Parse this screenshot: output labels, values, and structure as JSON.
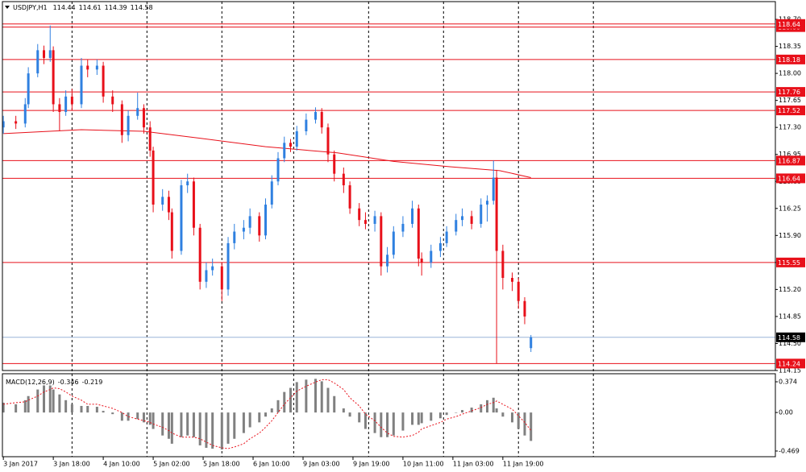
{
  "chart_data": [
    {
      "type": "candlestick",
      "title": "USDJPY,H1",
      "header_values": [
        114.44,
        114.61,
        114.39,
        114.58
      ],
      "x": [
        0,
        4,
        7,
        8,
        11,
        13,
        15,
        16,
        18,
        20,
        22,
        25,
        27,
        30,
        32,
        35,
        38,
        40,
        43,
        45,
        47,
        48,
        51,
        53,
        54,
        57,
        59,
        61,
        63,
        65,
        67,
        70,
        72,
        74,
        77,
        79,
        82,
        84,
        86,
        88,
        90,
        92,
        94,
        97,
        100,
        102,
        104,
        106,
        109,
        111,
        114,
        116,
        119,
        121,
        123,
        125,
        128,
        131,
        133,
        134,
        137,
        140,
        142,
        145,
        147,
        150,
        153,
        155,
        157,
        158,
        160,
        163,
        165,
        167,
        169
      ],
      "open": [
        117.3,
        117.38,
        117.35,
        117.6,
        118.0,
        118.3,
        118.2,
        118.3,
        117.6,
        117.5,
        117.7,
        117.6,
        118.1,
        118.05,
        118.1,
        117.7,
        117.6,
        117.2,
        117.45,
        117.55,
        117.3,
        117.0,
        116.3,
        116.4,
        116.2,
        115.7,
        116.55,
        116.6,
        116.0,
        115.3,
        115.45,
        115.5,
        115.2,
        115.8,
        115.95,
        116.0,
        116.15,
        115.9,
        116.3,
        116.6,
        116.9,
        117.1,
        117.05,
        117.25,
        117.4,
        117.5,
        117.3,
        116.95,
        116.7,
        116.55,
        116.25,
        116.1,
        116.05,
        116.15,
        115.5,
        115.65,
        115.95,
        116.05,
        116.25,
        115.6,
        115.55,
        115.7,
        115.8,
        115.95,
        116.1,
        116.15,
        116.05,
        116.3,
        116.35,
        116.65,
        115.7,
        115.35,
        115.3,
        115.05,
        114.44
      ],
      "high": [
        117.45,
        117.45,
        117.68,
        118.08,
        118.38,
        118.36,
        118.62,
        118.35,
        117.68,
        117.78,
        117.8,
        118.2,
        118.18,
        118.18,
        118.15,
        117.78,
        117.65,
        117.52,
        117.75,
        117.6,
        117.38,
        117.05,
        116.5,
        116.48,
        116.25,
        116.62,
        116.7,
        116.65,
        116.05,
        115.55,
        115.6,
        115.55,
        115.88,
        116.05,
        116.1,
        116.25,
        116.2,
        116.38,
        116.68,
        116.98,
        117.18,
        117.15,
        117.32,
        117.48,
        117.56,
        117.55,
        117.35,
        117.0,
        116.78,
        116.6,
        116.32,
        116.2,
        116.22,
        116.2,
        115.75,
        116.02,
        116.15,
        116.35,
        116.3,
        115.68,
        115.78,
        115.88,
        116.02,
        116.18,
        116.25,
        116.22,
        116.38,
        116.42,
        116.87,
        116.75,
        115.78,
        115.42,
        115.35,
        115.1,
        114.61
      ],
      "low": [
        117.22,
        117.28,
        117.3,
        117.55,
        117.95,
        118.12,
        118.15,
        117.5,
        117.25,
        117.45,
        117.52,
        117.55,
        117.95,
        117.98,
        117.62,
        117.5,
        117.1,
        117.12,
        117.4,
        117.22,
        116.92,
        116.2,
        116.22,
        116.1,
        115.6,
        115.65,
        116.45,
        115.9,
        115.2,
        115.22,
        115.38,
        115.05,
        115.12,
        115.72,
        115.85,
        115.92,
        115.82,
        115.85,
        116.25,
        116.55,
        116.85,
        116.98,
        117.0,
        117.2,
        117.35,
        117.22,
        116.85,
        116.6,
        116.45,
        116.18,
        116.02,
        115.98,
        115.95,
        115.38,
        115.42,
        115.6,
        115.88,
        116.0,
        115.5,
        115.38,
        115.48,
        115.62,
        115.75,
        115.9,
        116.02,
        115.98,
        116.0,
        116.08,
        116.3,
        114.24,
        115.2,
        115.18,
        114.95,
        114.75,
        114.39
      ],
      "close": [
        117.38,
        117.35,
        117.6,
        118.0,
        118.3,
        118.2,
        118.3,
        117.6,
        117.5,
        117.7,
        117.6,
        118.1,
        118.05,
        118.1,
        117.7,
        117.6,
        117.2,
        117.45,
        117.55,
        117.3,
        117.0,
        116.3,
        116.4,
        116.2,
        115.7,
        116.55,
        116.6,
        116.0,
        115.3,
        115.45,
        115.5,
        115.2,
        115.8,
        115.95,
        116.0,
        116.15,
        115.9,
        116.3,
        116.6,
        116.9,
        117.1,
        117.05,
        117.25,
        117.4,
        117.5,
        117.3,
        116.95,
        116.7,
        116.55,
        116.25,
        116.1,
        116.05,
        116.15,
        115.5,
        115.65,
        115.95,
        116.05,
        116.25,
        115.6,
        115.55,
        115.7,
        115.8,
        115.95,
        116.1,
        116.15,
        116.05,
        116.3,
        116.35,
        116.65,
        115.7,
        115.35,
        115.3,
        115.05,
        114.85,
        114.58
      ],
      "up_color": "#2f80e0",
      "down_color": "#e8101a",
      "moving_average": {
        "color": "#e8101a",
        "x": [
          0,
          25,
          45,
          63,
          84,
          107,
          125,
          143,
          159,
          169
        ],
        "values": [
          117.22,
          117.27,
          117.25,
          117.16,
          117.05,
          116.97,
          116.86,
          116.79,
          116.74,
          116.65
        ]
      },
      "levels": {
        "color": "#e8101a",
        "values": [
          {
            "value": 118.6,
            "label": "118.60"
          },
          118.64,
          118.18,
          117.76,
          117.52,
          116.87,
          116.64,
          115.55,
          114.24
        ]
      },
      "current_price": 114.58,
      "current_color": "#9ab4d8",
      "period_separators": [
        22,
        46,
        70,
        93,
        117,
        141,
        165,
        189
      ],
      "xlim": [
        -0.3,
        247.3
      ],
      "ylim": [
        114.15,
        118.93
      ],
      "yticks": [
        {
          "value": 118.7,
          "label": "118.70"
        },
        118.35,
        {
          "value": 118,
          "label": "118.00"
        },
        117.65,
        {
          "value": 117.3,
          "label": "117.30"
        },
        116.95,
        {
          "value": 116.6,
          "label": "116.60"
        },
        116.25,
        {
          "value": 115.9,
          "label": "115.90"
        },
        115.55,
        {
          "value": 115.2,
          "label": "115.20"
        },
        114.85,
        {
          "value": 114.5,
          "label": "114.50"
        },
        114.15
      ],
      "xticks": [
        {
          "value": 0,
          "label": "3 Jan 2017"
        },
        {
          "value": 16,
          "label": "3 Jan 18:00"
        },
        {
          "value": 32,
          "label": "4 Jan 10:00"
        },
        {
          "value": 48,
          "label": "5 Jan 02:00"
        },
        {
          "value": 64,
          "label": "5 Jan 18:00"
        },
        {
          "value": 80,
          "label": "6 Jan 10:00"
        },
        {
          "value": 96,
          "label": "9 Jan 03:00"
        },
        {
          "value": 112,
          "label": "9 Jan 19:00"
        },
        {
          "value": 128,
          "label": "10 Jan 11:00"
        },
        {
          "value": 144,
          "label": "11 Jan 03:00"
        },
        {
          "value": 160,
          "label": "11 Jan 19:00"
        }
      ]
    },
    {
      "type": "macd",
      "title": "MACD(12,26,9)",
      "header_values": [
        -0.346,
        -0.219
      ],
      "x": [
        0,
        4,
        7,
        8,
        11,
        13,
        15,
        16,
        18,
        20,
        22,
        25,
        27,
        30,
        32,
        35,
        38,
        40,
        43,
        45,
        47,
        48,
        51,
        53,
        54,
        57,
        59,
        61,
        63,
        65,
        67,
        70,
        72,
        74,
        77,
        79,
        82,
        84,
        86,
        88,
        90,
        92,
        94,
        97,
        100,
        102,
        104,
        106,
        109,
        111,
        114,
        116,
        119,
        121,
        123,
        125,
        128,
        131,
        133,
        134,
        137,
        140,
        142,
        145,
        147,
        150,
        153,
        155,
        157,
        158,
        160,
        163,
        165,
        167,
        169
      ],
      "histogram": [
        0.12,
        0.1,
        0.15,
        0.2,
        0.28,
        0.33,
        0.33,
        0.28,
        0.22,
        0.15,
        0.1,
        0.08,
        0.08,
        0.07,
        0.02,
        -0.02,
        -0.1,
        -0.1,
        -0.08,
        -0.12,
        -0.15,
        -0.2,
        -0.28,
        -0.32,
        -0.38,
        -0.3,
        -0.28,
        -0.3,
        -0.4,
        -0.43,
        -0.44,
        -0.45,
        -0.38,
        -0.32,
        -0.25,
        -0.18,
        -0.12,
        -0.05,
        0.05,
        0.15,
        0.25,
        0.3,
        0.37,
        0.4,
        0.41,
        0.38,
        0.3,
        0.2,
        0.05,
        -0.05,
        -0.12,
        -0.2,
        -0.25,
        -0.3,
        -0.3,
        -0.28,
        -0.22,
        -0.15,
        -0.15,
        -0.13,
        -0.1,
        -0.07,
        -0.03,
        0.0,
        0.03,
        0.06,
        0.1,
        0.15,
        0.18,
        0.05,
        -0.05,
        -0.12,
        -0.2,
        -0.28,
        -0.346
      ],
      "signal": [
        0.1,
        0.12,
        0.13,
        0.15,
        0.2,
        0.25,
        0.28,
        0.3,
        0.29,
        0.25,
        0.2,
        0.15,
        0.1,
        0.1,
        0.08,
        0.05,
        0.0,
        -0.05,
        -0.08,
        -0.1,
        -0.12,
        -0.14,
        -0.18,
        -0.22,
        -0.25,
        -0.3,
        -0.3,
        -0.3,
        -0.32,
        -0.36,
        -0.4,
        -0.43,
        -0.44,
        -0.42,
        -0.38,
        -0.32,
        -0.25,
        -0.18,
        -0.1,
        0.0,
        0.1,
        0.18,
        0.26,
        0.32,
        0.37,
        0.4,
        0.4,
        0.36,
        0.28,
        0.18,
        0.08,
        -0.02,
        -0.1,
        -0.18,
        -0.25,
        -0.29,
        -0.3,
        -0.28,
        -0.24,
        -0.2,
        -0.16,
        -0.12,
        -0.08,
        -0.05,
        -0.02,
        0.02,
        0.06,
        0.1,
        0.12,
        0.14,
        0.1,
        0.04,
        -0.04,
        -0.12,
        -0.219
      ],
      "histogram_color": "#808080",
      "signal_color": "#e8101a",
      "xlim": [
        -0.3,
        247.3
      ],
      "ylim": [
        -0.538,
        0.472
      ],
      "yticks": [
        0.374,
        {
          "value": 0,
          "label": "0.00"
        },
        -0.469
      ]
    }
  ]
}
